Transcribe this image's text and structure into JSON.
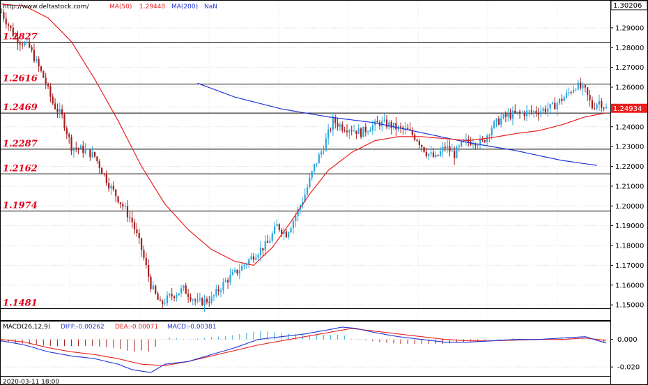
{
  "header": {
    "source": "http://www.deltastock.com/",
    "ma50_label": "MA(50)",
    "ma50_value": "1.29440",
    "ma200_label": "MA(200)",
    "ma200_value": "NaN"
  },
  "footer": {
    "date": "2020-03-11 18:00"
  },
  "colors": {
    "ma50": "#e8201e",
    "ma200": "#1f35d8",
    "bull": "#29a7e0",
    "bear": "#a61d1d",
    "level_text": "#e0001a"
  },
  "chart_data": [
    {
      "type": "candlestick",
      "ylim": [
        1.143,
        1.303
      ],
      "yticks": [
        "1.15000",
        "1.16000",
        "1.17000",
        "1.18000",
        "1.19000",
        "1.20000",
        "1.21000",
        "1.22000",
        "1.23000",
        "1.24000",
        "1.25000",
        "1.26000",
        "1.27000",
        "1.28000",
        "1.29000"
      ],
      "top_price_label": "1.30206",
      "current_price_label": "1.24934",
      "current_price": 1.24934,
      "levels": [
        {
          "value": 1.2827,
          "label": "1.2827"
        },
        {
          "value": 1.2616,
          "label": "1.2616"
        },
        {
          "value": 1.2469,
          "label": "1.2469"
        },
        {
          "value": 1.2287,
          "label": "1.2287"
        },
        {
          "value": 1.2162,
          "label": "1.2162"
        },
        {
          "value": 1.1974,
          "label": "1.1974"
        },
        {
          "value": 1.1481,
          "label": "1.1481"
        }
      ],
      "close_path": [
        [
          0,
          1.298
        ],
        [
          6,
          1.285
        ],
        [
          12,
          1.28
        ],
        [
          18,
          1.265
        ],
        [
          22,
          1.252
        ],
        [
          26,
          1.245
        ],
        [
          30,
          1.23
        ],
        [
          36,
          1.228
        ],
        [
          40,
          1.225
        ],
        [
          46,
          1.211
        ],
        [
          52,
          1.2
        ],
        [
          56,
          1.192
        ],
        [
          60,
          1.178
        ],
        [
          64,
          1.16
        ],
        [
          68,
          1.15
        ],
        [
          72,
          1.154
        ],
        [
          78,
          1.158
        ],
        [
          84,
          1.151
        ],
        [
          90,
          1.153
        ],
        [
          96,
          1.162
        ],
        [
          102,
          1.168
        ],
        [
          108,
          1.175
        ],
        [
          114,
          1.181
        ],
        [
          118,
          1.19
        ],
        [
          122,
          1.186
        ],
        [
          126,
          1.195
        ],
        [
          130,
          1.206
        ],
        [
          134,
          1.22
        ],
        [
          138,
          1.23
        ],
        [
          142,
          1.243
        ],
        [
          146,
          1.24
        ],
        [
          150,
          1.239
        ],
        [
          154,
          1.237
        ],
        [
          158,
          1.24
        ],
        [
          162,
          1.242
        ],
        [
          166,
          1.241
        ],
        [
          170,
          1.239
        ],
        [
          174,
          1.238
        ],
        [
          178,
          1.234
        ],
        [
          182,
          1.227
        ],
        [
          186,
          1.224
        ],
        [
          190,
          1.23
        ],
        [
          194,
          1.226
        ],
        [
          198,
          1.232
        ],
        [
          202,
          1.233
        ],
        [
          206,
          1.232
        ],
        [
          210,
          1.24
        ],
        [
          214,
          1.244
        ],
        [
          218,
          1.246
        ],
        [
          224,
          1.247
        ],
        [
          230,
          1.248
        ],
        [
          236,
          1.25
        ],
        [
          242,
          1.256
        ],
        [
          246,
          1.261
        ],
        [
          250,
          1.258
        ],
        [
          253,
          1.25
        ],
        [
          256,
          1.253
        ],
        [
          259,
          1.2493
        ]
      ],
      "ma50": [
        [
          0,
          1.302
        ],
        [
          10,
          1.301
        ],
        [
          20,
          1.295
        ],
        [
          30,
          1.283
        ],
        [
          40,
          1.264
        ],
        [
          50,
          1.243
        ],
        [
          60,
          1.22
        ],
        [
          70,
          1.201
        ],
        [
          80,
          1.188
        ],
        [
          90,
          1.178
        ],
        [
          100,
          1.172
        ],
        [
          108,
          1.17
        ],
        [
          116,
          1.179
        ],
        [
          124,
          1.192
        ],
        [
          132,
          1.206
        ],
        [
          140,
          1.218
        ],
        [
          150,
          1.227
        ],
        [
          160,
          1.233
        ],
        [
          170,
          1.235
        ],
        [
          180,
          1.235
        ],
        [
          190,
          1.234
        ],
        [
          200,
          1.233
        ],
        [
          210,
          1.2345
        ],
        [
          220,
          1.2365
        ],
        [
          230,
          1.238
        ],
        [
          240,
          1.241
        ],
        [
          250,
          1.245
        ],
        [
          259,
          1.247
        ]
      ],
      "ma200": [
        [
          84,
          1.262
        ],
        [
          100,
          1.255
        ],
        [
          120,
          1.249
        ],
        [
          140,
          1.245
        ],
        [
          160,
          1.242
        ],
        [
          180,
          1.237
        ],
        [
          200,
          1.232
        ],
        [
          220,
          1.228
        ],
        [
          240,
          1.223
        ],
        [
          255,
          1.2205
        ]
      ]
    },
    {
      "type": "macd",
      "title": "MACD(26,12,9)",
      "diff_label": "DIFF:-0.00262",
      "dea_label": "DEA:-0.00071",
      "macd_label": "MACD:-0.00381",
      "ylim": [
        -0.026,
        0.012
      ],
      "yticks": [
        "0.000",
        "-0.020"
      ],
      "diff": [
        [
          0,
          -0.001
        ],
        [
          10,
          -0.004
        ],
        [
          20,
          -0.009
        ],
        [
          30,
          -0.012
        ],
        [
          40,
          -0.014
        ],
        [
          50,
          -0.018
        ],
        [
          56,
          -0.022
        ],
        [
          64,
          -0.024
        ],
        [
          70,
          -0.018
        ],
        [
          80,
          -0.016
        ],
        [
          90,
          -0.011
        ],
        [
          100,
          -0.006
        ],
        [
          110,
          0.0
        ],
        [
          120,
          0.002
        ],
        [
          130,
          0.004
        ],
        [
          140,
          0.007
        ],
        [
          146,
          0.009
        ],
        [
          152,
          0.008
        ],
        [
          160,
          0.005
        ],
        [
          170,
          0.002
        ],
        [
          180,
          0.0
        ],
        [
          190,
          -0.002
        ],
        [
          200,
          -0.002
        ],
        [
          210,
          -0.001
        ],
        [
          220,
          0.0
        ],
        [
          230,
          0.0
        ],
        [
          240,
          0.001
        ],
        [
          250,
          0.002
        ],
        [
          259,
          -0.0026
        ]
      ],
      "dea": [
        [
          0,
          0.0
        ],
        [
          10,
          -0.002
        ],
        [
          20,
          -0.006
        ],
        [
          30,
          -0.009
        ],
        [
          40,
          -0.011
        ],
        [
          50,
          -0.014
        ],
        [
          60,
          -0.018
        ],
        [
          70,
          -0.019
        ],
        [
          80,
          -0.016
        ],
        [
          90,
          -0.012
        ],
        [
          100,
          -0.008
        ],
        [
          110,
          -0.004
        ],
        [
          120,
          -0.001
        ],
        [
          130,
          0.002
        ],
        [
          140,
          0.005
        ],
        [
          150,
          0.008
        ],
        [
          160,
          0.006
        ],
        [
          170,
          0.004
        ],
        [
          180,
          0.002
        ],
        [
          190,
          0.0
        ],
        [
          200,
          -0.001
        ],
        [
          210,
          -0.001
        ],
        [
          220,
          -0.0005
        ],
        [
          230,
          0.0
        ],
        [
          240,
          0.0
        ],
        [
          250,
          0.001
        ],
        [
          259,
          -0.0007
        ]
      ]
    }
  ]
}
